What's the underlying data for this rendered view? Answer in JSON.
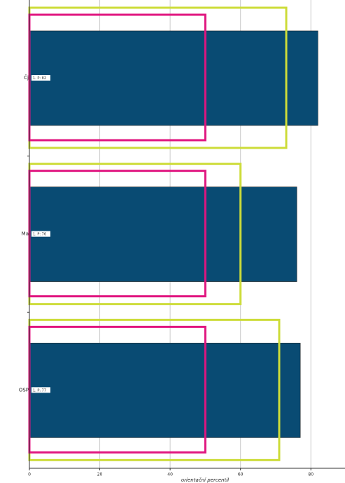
{
  "chart_data": {
    "type": "hbar",
    "x_label": "orientační percentil",
    "categories": [
      "Čj",
      "Ma",
      "OSP"
    ],
    "values": [
      82,
      76,
      77
    ],
    "value_labels": [
      "1. P: 82",
      "1. P: 76",
      "1. P: 77"
    ],
    "color": "#094b73",
    "ranges": [
      {
        "color": "#cddc39",
        "values": [
          73,
          60,
          71
        ]
      },
      {
        "color": "#e0157f",
        "values": [
          50,
          50,
          50
        ]
      }
    ],
    "xlim": [
      0,
      89.7
    ],
    "xticks": [
      0,
      20,
      40,
      60,
      80
    ],
    "grid": true
  }
}
